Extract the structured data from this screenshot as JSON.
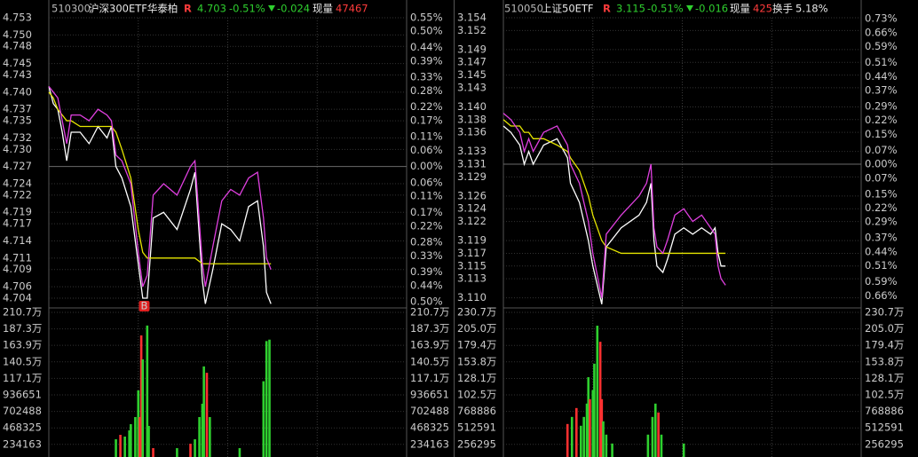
{
  "chart_data": [
    {
      "type": "line",
      "code": "510300",
      "name": "沪深300ETF华泰柏",
      "flag": "R",
      "price": "4.703",
      "change_pct": "-0.51%",
      "change": "-0.024",
      "volume_label": "现量",
      "volume": "47467",
      "xlim": [
        0,
        240
      ],
      "xticks": [
        60,
        120,
        180
      ],
      "x": [
        0,
        3,
        6,
        9,
        12,
        15,
        21,
        27,
        33,
        39,
        42,
        45,
        49,
        55,
        60,
        63,
        66,
        70,
        77,
        86,
        95,
        98,
        103,
        105,
        110,
        116,
        122,
        128,
        134,
        140,
        144,
        146,
        149
      ],
      "series": [
        {
          "color": "#ffffff",
          "values": [
            4.741,
            4.738,
            4.737,
            4.733,
            4.728,
            4.733,
            4.733,
            4.731,
            4.734,
            4.732,
            4.734,
            4.727,
            4.725,
            4.72,
            4.71,
            4.704,
            4.704,
            4.718,
            4.719,
            4.716,
            4.723,
            4.726,
            4.707,
            4.703,
            4.709,
            4.717,
            4.716,
            4.714,
            4.72,
            4.721,
            4.713,
            4.705,
            4.703
          ]
        },
        {
          "color": "#e6e600",
          "values": [
            4.74,
            4.739,
            4.737,
            4.736,
            4.735,
            4.735,
            4.734,
            4.734,
            4.734,
            4.734,
            4.734,
            4.733,
            4.73,
            4.725,
            4.716,
            4.712,
            4.711,
            4.711,
            4.711,
            4.711,
            4.711,
            4.711,
            4.71,
            4.71,
            4.71,
            4.71,
            4.71,
            4.71,
            4.71,
            4.71,
            4.71,
            4.71,
            4.71
          ]
        },
        {
          "color": "#e040e0",
          "values": [
            4.741,
            4.74,
            4.739,
            4.735,
            4.731,
            4.736,
            4.736,
            4.735,
            4.737,
            4.736,
            4.735,
            4.729,
            4.728,
            4.724,
            4.712,
            4.706,
            4.708,
            4.722,
            4.724,
            4.722,
            4.727,
            4.728,
            4.71,
            4.706,
            4.713,
            4.721,
            4.723,
            4.722,
            4.725,
            4.726,
            4.718,
            4.711,
            4.709
          ]
        }
      ],
      "ylim": [
        4.7026,
        4.753
      ],
      "yticks": [
        4.753,
        {
          "value": 4.75,
          "label": "4.750"
        },
        4.748,
        4.745,
        4.743,
        {
          "value": 4.74,
          "label": "4.740"
        },
        4.737,
        4.735,
        4.732,
        {
          "value": 4.73,
          "label": "4.730"
        },
        4.727,
        4.724,
        4.722,
        4.719,
        4.717,
        4.714,
        4.711,
        4.709,
        4.706,
        4.704
      ],
      "y2lim": [
        -0.516,
        0.55
      ],
      "y2ticks": [
        {
          "value": 0.55,
          "label": "0.55%"
        },
        {
          "value": 0.5,
          "label": "0.50%"
        },
        {
          "value": 0.44,
          "label": "0.44%"
        },
        {
          "value": 0.39,
          "label": "0.39%"
        },
        {
          "value": 0.33,
          "label": "0.33%"
        },
        {
          "value": 0.28,
          "label": "0.28%"
        },
        {
          "value": 0.22,
          "label": "0.22%"
        },
        {
          "value": 0.17,
          "label": "0.17%"
        },
        {
          "value": 0.11,
          "label": "0.11%"
        },
        {
          "value": 0.06,
          "label": "0.06%"
        },
        {
          "value": 0,
          "label": "0.00%"
        },
        {
          "value": -0.06,
          "label": "0.06%"
        },
        {
          "value": -0.11,
          "label": "0.11%"
        },
        {
          "value": -0.17,
          "label": "0.17%"
        },
        {
          "value": -0.22,
          "label": "0.22%"
        },
        {
          "value": -0.28,
          "label": "0.28%"
        },
        {
          "value": -0.33,
          "label": "0.33%"
        },
        {
          "value": -0.39,
          "label": "0.39%"
        },
        {
          "value": -0.44,
          "label": "0.44%"
        },
        {
          "value": -0.5,
          "label": "0.50%"
        }
      ],
      "grid": true,
      "markers": [
        {
          "label": "B",
          "x": 64
        }
      ]
    },
    {
      "type": "bar",
      "xlim": [
        0,
        240
      ],
      "xticks": [
        60,
        120,
        180
      ],
      "x": [
        45,
        48,
        51,
        54,
        55,
        58,
        60,
        61,
        62,
        63,
        66,
        67,
        70,
        86,
        95,
        98,
        101,
        103,
        104,
        106,
        108,
        128,
        144,
        146,
        148
      ],
      "values": [
        307000,
        370000,
        345000,
        433000,
        521000,
        622000,
        1000000,
        622000,
        1780000,
        1440000,
        1920000,
        496000,
        181000,
        181000,
        244000,
        307000,
        622000,
        811000,
        1340000,
        1250000,
        622000,
        181000,
        1130000,
        1700000,
        1720000
      ],
      "colors": [
        "#2fd02f",
        "#ff3030",
        "#2fd02f",
        "#2fd02f",
        "#2fd02f",
        "#2fd02f",
        "#2fd02f",
        "#ff3030",
        "#ff3030",
        "#2fd02f",
        "#2fd02f",
        "#2fd02f",
        "#ff3030",
        "#2fd02f",
        "#ff3030",
        "#2fd02f",
        "#2fd02f",
        "#2fd02f",
        "#2fd02f",
        "#ff3030",
        "#2fd02f",
        "#2fd02f",
        "#2fd02f",
        "#2fd02f",
        "#2fd02f"
      ],
      "ylim": [
        0,
        2107000
      ],
      "yticks": [
        {
          "value": 2107000,
          "label": "210.7万"
        },
        {
          "value": 1873000,
          "label": "187.3万"
        },
        {
          "value": 1639000,
          "label": "163.9万"
        },
        {
          "value": 1405000,
          "label": "140.5万"
        },
        {
          "value": 1171000,
          "label": "117.1万"
        },
        936651,
        702488,
        468325,
        234163
      ],
      "tick_color": "#d8d890",
      "grid": true
    },
    {
      "type": "line",
      "code": "510050",
      "name": "上证50ETF",
      "flag": "R",
      "price": "3.115",
      "change_pct": "-0.51%",
      "change": "-0.016",
      "volume_label": "现量",
      "volume": "425",
      "turnover_label": "换手",
      "turnover": "5.18%",
      "xlim": [
        0,
        240
      ],
      "xticks": [
        60,
        120,
        180
      ],
      "x": [
        0,
        5,
        11,
        14,
        17,
        20,
        27,
        36,
        43,
        45,
        51,
        57,
        60,
        66,
        69,
        79,
        91,
        96,
        99,
        101,
        103,
        107,
        110,
        115,
        121,
        127,
        133,
        139,
        142,
        144,
        146,
        149
      ],
      "series": [
        {
          "color": "#ffffff",
          "values": [
            3.137,
            3.136,
            3.134,
            3.131,
            3.133,
            3.131,
            3.134,
            3.135,
            3.132,
            3.128,
            3.125,
            3.119,
            3.115,
            3.109,
            3.118,
            3.121,
            3.123,
            3.125,
            3.128,
            3.119,
            3.115,
            3.114,
            3.116,
            3.12,
            3.121,
            3.12,
            3.121,
            3.12,
            3.121,
            3.117,
            3.115,
            3.115
          ]
        },
        {
          "color": "#e6e600",
          "values": [
            3.138,
            3.137,
            3.137,
            3.136,
            3.136,
            3.135,
            3.135,
            3.134,
            3.133,
            3.132,
            3.13,
            3.126,
            3.123,
            3.119,
            3.118,
            3.117,
            3.117,
            3.117,
            3.117,
            3.117,
            3.117,
            3.117,
            3.117,
            3.117,
            3.117,
            3.117,
            3.117,
            3.117,
            3.117,
            3.117,
            3.117,
            3.117
          ]
        },
        {
          "color": "#e040e0",
          "values": [
            3.139,
            3.138,
            3.136,
            3.133,
            3.135,
            3.133,
            3.136,
            3.137,
            3.134,
            3.131,
            3.128,
            3.122,
            3.117,
            3.11,
            3.12,
            3.123,
            3.126,
            3.128,
            3.131,
            3.121,
            3.118,
            3.117,
            3.119,
            3.123,
            3.124,
            3.122,
            3.123,
            3.121,
            3.12,
            3.115,
            3.113,
            3.112
          ]
        }
      ],
      "ylim": [
        3.1087,
        3.154
      ],
      "yticks": [
        3.154,
        3.152,
        3.149,
        3.147,
        3.145,
        3.143,
        {
          "value": 3.14,
          "label": "3.140"
        },
        3.138,
        3.136,
        3.133,
        3.131,
        3.129,
        3.126,
        3.124,
        3.122,
        3.119,
        3.117,
        3.115,
        3.113,
        {
          "value": 3.11,
          "label": "3.110"
        }
      ],
      "y2lim": [
        -0.712,
        0.735
      ],
      "y2ticks": [
        {
          "value": 0.73,
          "label": "0.73%"
        },
        {
          "value": 0.66,
          "label": "0.66%"
        },
        {
          "value": 0.59,
          "label": "0.59%"
        },
        {
          "value": 0.51,
          "label": "0.51%"
        },
        {
          "value": 0.44,
          "label": "0.44%"
        },
        {
          "value": 0.37,
          "label": "0.37%"
        },
        {
          "value": 0.29,
          "label": "0.29%"
        },
        {
          "value": 0.22,
          "label": "0.22%"
        },
        {
          "value": 0.15,
          "label": "0.15%"
        },
        {
          "value": 0.07,
          "label": "0.07%"
        },
        {
          "value": 0,
          "label": "0.00%"
        },
        {
          "value": -0.07,
          "label": "0.07%"
        },
        {
          "value": -0.15,
          "label": "0.15%"
        },
        {
          "value": -0.22,
          "label": "0.22%"
        },
        {
          "value": -0.29,
          "label": "0.29%"
        },
        {
          "value": -0.37,
          "label": "0.37%"
        },
        {
          "value": -0.44,
          "label": "0.44%"
        },
        {
          "value": -0.51,
          "label": "0.51%"
        },
        {
          "value": -0.59,
          "label": "0.59%"
        },
        {
          "value": -0.66,
          "label": "0.66%"
        }
      ],
      "grid": true
    },
    {
      "type": "bar",
      "xlim": [
        0,
        240
      ],
      "xticks": [
        60,
        120,
        180
      ],
      "x": [
        43,
        46,
        49,
        52,
        54,
        56,
        57,
        58,
        60,
        61,
        63,
        65,
        66,
        67,
        69,
        73,
        97,
        100,
        102,
        104,
        106,
        121
      ],
      "values": [
        573000,
        683000,
        821000,
        546000,
        683000,
        890000,
        1300000,
        959000,
        1100000,
        1510000,
        2100000,
        1850000,
        959000,
        615000,
        408000,
        270000,
        408000,
        683000,
        890000,
        752000,
        408000,
        270000
      ],
      "colors": [
        "#ff3030",
        "#2fd02f",
        "#ff3030",
        "#2fd02f",
        "#2fd02f",
        "#2fd02f",
        "#2fd02f",
        "#ff3030",
        "#2fd02f",
        "#2fd02f",
        "#2fd02f",
        "#ff3030",
        "#ff3030",
        "#2fd02f",
        "#2fd02f",
        "#2fd02f",
        "#2fd02f",
        "#2fd02f",
        "#2fd02f",
        "#ff3030",
        "#2fd02f",
        "#2fd02f"
      ],
      "ylim": [
        0,
        2307000
      ],
      "yticks": [
        {
          "value": 2307000,
          "label": "230.7万"
        },
        {
          "value": 2050000,
          "label": "205.0万"
        },
        {
          "value": 1794000,
          "label": "179.4万"
        },
        {
          "value": 1538000,
          "label": "153.8万"
        },
        {
          "value": 1281000,
          "label": "128.1万"
        },
        {
          "value": 1025000,
          "label": "102.5万"
        },
        768886,
        512591,
        256295
      ],
      "tick_color": "#d8d890",
      "grid": true
    }
  ]
}
